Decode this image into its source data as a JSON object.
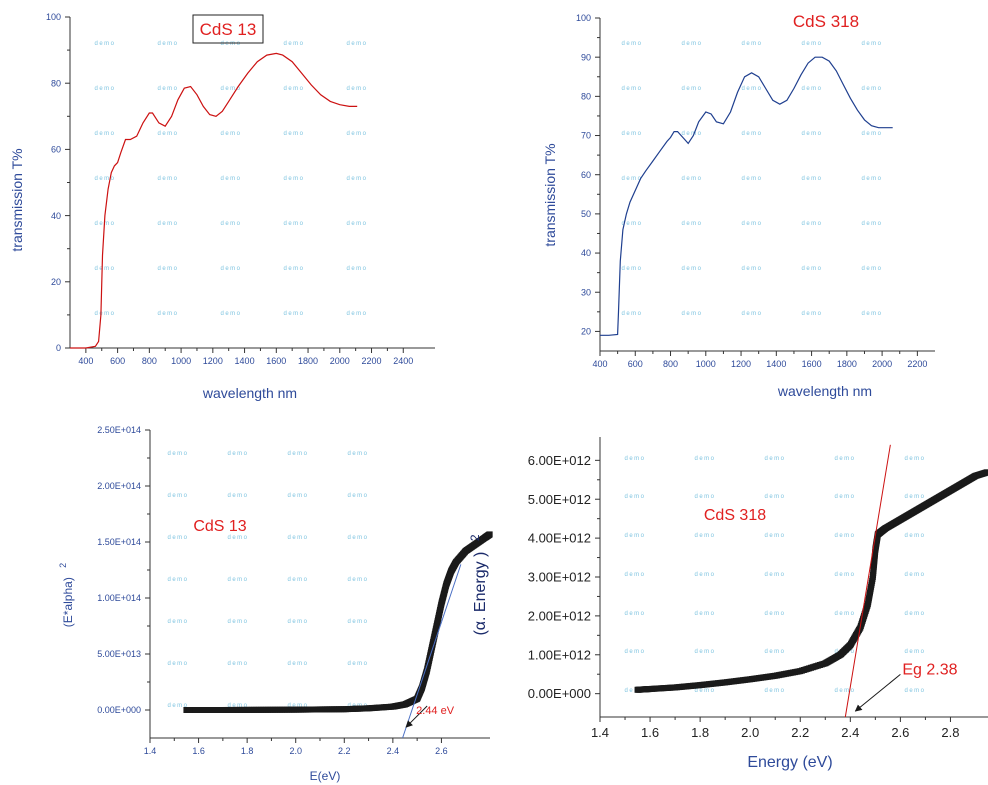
{
  "colors": {
    "axis": "#333333",
    "axis_label": "#2e4a9a",
    "tick_label": "#2e4a9a",
    "title_red": "#e02020",
    "line_red": "#cc1111",
    "line_blue": "#1f3f8f",
    "data_black": "#1a1a1a",
    "fit_line": "#cc1111",
    "fit_line_blue": "#4a6fc4",
    "watermark": "#7fc4e0"
  },
  "watermark_text": "demo",
  "chart_data": [
    {
      "id": "cds13-transmission",
      "type": "line",
      "title": "CdS 13",
      "title_boxed": true,
      "xlabel": "wavelength nm",
      "ylabel": "transmission T%",
      "xlim": [
        300,
        2600
      ],
      "ylim": [
        0,
        100
      ],
      "xticks": [
        400,
        600,
        800,
        1000,
        1200,
        1400,
        1600,
        1800,
        2000,
        2200,
        2400
      ],
      "yticks": [
        0,
        20,
        40,
        60,
        80,
        100
      ],
      "series": [
        {
          "x": [
            300,
            400,
            460,
            480,
            495,
            505,
            520,
            540,
            560,
            580,
            600,
            620,
            650,
            680,
            720,
            760,
            800,
            820,
            860,
            900,
            940,
            980,
            1020,
            1060,
            1100,
            1140,
            1180,
            1220,
            1260,
            1300,
            1360,
            1420,
            1480,
            1540,
            1600,
            1640,
            1700,
            1760,
            1820,
            1880,
            1940,
            2000,
            2060,
            2110
          ],
          "y": [
            0,
            0,
            0.5,
            2,
            10,
            28,
            40,
            48,
            53,
            55,
            56,
            59,
            63,
            63,
            64,
            68,
            71,
            71,
            68,
            67,
            70,
            75,
            78.5,
            79,
            76.5,
            73,
            70.5,
            70,
            71.5,
            74.5,
            79,
            83,
            86.5,
            88.5,
            89,
            88.5,
            86.5,
            83,
            79.5,
            76.5,
            74.5,
            73.5,
            73,
            73
          ]
        }
      ]
    },
    {
      "id": "cds318-transmission",
      "type": "line",
      "title": "CdS 318",
      "title_boxed": false,
      "xlabel": "wavelength nm",
      "ylabel": "transmission T%",
      "xlim": [
        400,
        2300
      ],
      "ylim": [
        15,
        100
      ],
      "xticks": [
        400,
        600,
        800,
        1000,
        1200,
        1400,
        1600,
        1800,
        2000,
        2200
      ],
      "yticks": [
        20,
        30,
        40,
        50,
        60,
        70,
        80,
        90,
        100
      ],
      "series": [
        {
          "x": [
            400,
            450,
            500,
            505,
            515,
            530,
            550,
            570,
            600,
            630,
            660,
            700,
            740,
            780,
            800,
            820,
            840,
            860,
            880,
            900,
            930,
            960,
            1000,
            1030,
            1060,
            1100,
            1140,
            1180,
            1220,
            1260,
            1300,
            1340,
            1380,
            1420,
            1460,
            1500,
            1540,
            1580,
            1620,
            1660,
            1700,
            1740,
            1780,
            1820,
            1860,
            1900,
            1940,
            1980,
            2020,
            2060
          ],
          "y": [
            19,
            19,
            19.2,
            25,
            38,
            46,
            50,
            53,
            56,
            59,
            61,
            63.5,
            66,
            68.5,
            69.5,
            71,
            71,
            70,
            69,
            68,
            70,
            73.5,
            76,
            75.5,
            73.5,
            73,
            76,
            81,
            85,
            86,
            85,
            82,
            79,
            78,
            79,
            82,
            85.5,
            88.5,
            90,
            90,
            89,
            86.5,
            83,
            79.5,
            76.5,
            74,
            72.5,
            72,
            72,
            72
          ]
        }
      ]
    },
    {
      "id": "cds13-tauc",
      "type": "scatter",
      "title": "CdS 13",
      "xlabel": "E(eV)",
      "ylabel": "(E*alpha)",
      "ylabel_superscript": "2",
      "xlim": [
        1.4,
        2.8
      ],
      "ylim": [
        -25000000000000.0,
        250000000000000.0
      ],
      "xticks": [
        1.4,
        1.6,
        1.8,
        2.0,
        2.2,
        2.4,
        2.6
      ],
      "yticks": [
        0,
        50000000000000.0,
        100000000000000.0,
        150000000000000.0,
        200000000000000.0,
        250000000000000.0
      ],
      "ytick_labels": [
        "0.00E+000",
        "5.00E+013",
        "1.00E+014",
        "1.50E+014",
        "2.00E+014",
        "2.50E+014"
      ],
      "series": [
        {
          "x": [
            1.55,
            1.6,
            1.7,
            1.8,
            1.9,
            2.0,
            2.1,
            2.2,
            2.3,
            2.4,
            2.45,
            2.5,
            2.52,
            2.54,
            2.56,
            2.58,
            2.6,
            2.62,
            2.64,
            2.66,
            2.7,
            2.74,
            2.78,
            2.8
          ],
          "y": [
            0,
            0,
            0,
            100000000000.0,
            200000000000.0,
            300000000000.0,
            500000000000.0,
            700000000000.0,
            1500000000000.0,
            3000000000000.0,
            5000000000000.0,
            10000000000000.0,
            20000000000000.0,
            35000000000000.0,
            55000000000000.0,
            75000000000000.0,
            95000000000000.0,
            112000000000000.0,
            124000000000000.0,
            132000000000000.0,
            142000000000000.0,
            148000000000000.0,
            154000000000000.0,
            157000000000000.0
          ]
        }
      ],
      "fit_line": {
        "x": [
          2.44,
          2.68
        ],
        "y": [
          -25000000000000.0,
          130000000000000.0
        ]
      },
      "annotation": {
        "text": "2.44 eV",
        "x": 2.5,
        "y": 0,
        "arrow_from": [
          2.52,
          -10000000000000.0
        ]
      }
    },
    {
      "id": "cds318-tauc",
      "type": "scatter",
      "title": "CdS 318",
      "xlabel": "Energy (eV)",
      "ylabel": "(α. Energy )",
      "ylabel_superscript": "2",
      "xlim": [
        1.4,
        2.95
      ],
      "ylim": [
        -600000000000.0,
        6600000000000.0
      ],
      "xticks": [
        1.4,
        1.6,
        1.8,
        2.0,
        2.2,
        2.4,
        2.6,
        2.8
      ],
      "yticks": [
        0,
        1000000000000.0,
        2000000000000.0,
        3000000000000.0,
        4000000000000.0,
        5000000000000.0,
        6000000000000.0
      ],
      "ytick_labels": [
        "0.00E+000",
        "1.00E+012",
        "2.00E+012",
        "3.00E+012",
        "4.00E+012",
        "5.00E+012",
        "6.00E+012"
      ],
      "series": [
        {
          "x": [
            1.55,
            1.6,
            1.7,
            1.8,
            1.9,
            2.0,
            2.1,
            2.2,
            2.3,
            2.36,
            2.4,
            2.44,
            2.47,
            2.49,
            2.5,
            2.51,
            2.52,
            2.54,
            2.58,
            2.62,
            2.66,
            2.7,
            2.74,
            2.78,
            2.82,
            2.86,
            2.9,
            2.95
          ],
          "y": [
            100000000000.0,
            120000000000.0,
            160000000000.0,
            220000000000.0,
            290000000000.0,
            370000000000.0,
            460000000000.0,
            580000000000.0,
            780000000000.0,
            1000000000000.0,
            1250000000000.0,
            1700000000000.0,
            2300000000000.0,
            3000000000000.0,
            3700000000000.0,
            4100000000000.0,
            4150000000000.0,
            4250000000000.0,
            4400000000000.0,
            4550000000000.0,
            4700000000000.0,
            4850000000000.0,
            5000000000000.0,
            5150000000000.0,
            5300000000000.0,
            5450000000000.0,
            5600000000000.0,
            5700000000000.0
          ]
        }
      ],
      "fit_line": {
        "x": [
          2.38,
          2.56
        ],
        "y": [
          -600000000000.0,
          6400000000000.0
        ]
      },
      "annotation": {
        "text": "Eg 2.38",
        "x": 2.6,
        "y": 650000000000.0,
        "arrow_to": [
          2.42,
          -450000000000.0
        ]
      }
    }
  ]
}
